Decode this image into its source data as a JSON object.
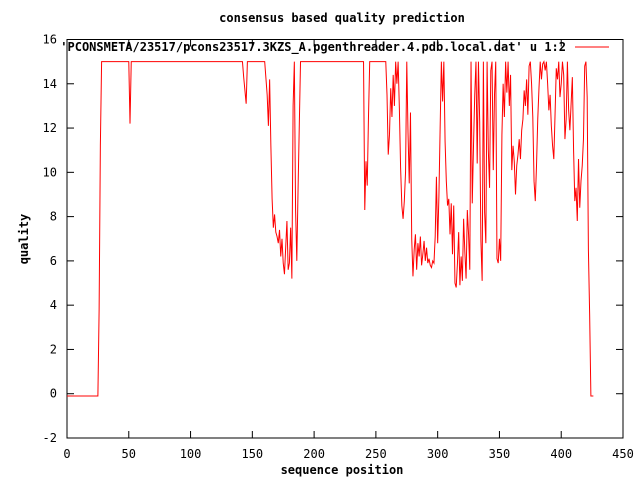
{
  "chart_data": {
    "type": "line",
    "title": "consensus based quality prediction",
    "xlabel": "sequence position",
    "ylabel": "quality",
    "xlim": [
      0,
      450
    ],
    "ylim": [
      -2,
      16
    ],
    "xticks": [
      0,
      50,
      100,
      150,
      200,
      250,
      300,
      350,
      400,
      450
    ],
    "yticks": [
      -2,
      0,
      2,
      4,
      6,
      8,
      10,
      12,
      14,
      16
    ],
    "grid": false,
    "legend_position": "top-right",
    "series": [
      {
        "name": "'PCONSMETA/23517/pcons23517.3KZS_A.pgenthreader.4.pdb.local.dat' u 1:2",
        "color": "#ff0000",
        "points": [
          [
            0,
            -0.1
          ],
          [
            25,
            -0.1
          ],
          [
            26,
            3.8
          ],
          [
            27,
            11.2
          ],
          [
            28,
            15
          ],
          [
            50,
            15
          ],
          [
            51,
            12.2
          ],
          [
            52,
            15
          ],
          [
            142,
            15
          ],
          [
            143,
            14.3
          ],
          [
            145,
            13.1
          ],
          [
            146,
            15
          ],
          [
            160,
            15
          ],
          [
            162,
            13.5
          ],
          [
            163,
            12.1
          ],
          [
            164,
            14.2
          ],
          [
            165,
            11.2
          ],
          [
            166,
            8.8
          ],
          [
            167,
            7.5
          ],
          [
            168,
            8.1
          ],
          [
            169,
            7.3
          ],
          [
            170,
            7.1
          ],
          [
            171,
            6.8
          ],
          [
            172,
            7.4
          ],
          [
            173,
            6.2
          ],
          [
            174,
            7.0
          ],
          [
            175,
            5.9
          ],
          [
            176,
            5.4
          ],
          [
            177,
            6.6
          ],
          [
            178,
            7.8
          ],
          [
            179,
            5.6
          ],
          [
            180,
            5.9
          ],
          [
            181,
            7.5
          ],
          [
            182,
            5.2
          ],
          [
            183,
            13.0
          ],
          [
            184,
            15
          ],
          [
            185,
            8.3
          ],
          [
            186,
            6.0
          ],
          [
            187,
            9.2
          ],
          [
            188,
            12.1
          ],
          [
            189,
            15
          ],
          [
            240,
            15
          ],
          [
            241,
            8.3
          ],
          [
            242,
            10.5
          ],
          [
            243,
            9.4
          ],
          [
            244,
            12.5
          ],
          [
            245,
            15
          ],
          [
            258,
            15
          ],
          [
            259,
            13.5
          ],
          [
            260,
            10.8
          ],
          [
            261,
            11.7
          ],
          [
            262,
            13.8
          ],
          [
            263,
            12.5
          ],
          [
            264,
            14.4
          ],
          [
            265,
            13.0
          ],
          [
            266,
            15
          ],
          [
            267,
            14.0
          ],
          [
            268,
            15
          ],
          [
            269,
            12.9
          ],
          [
            270,
            10.2
          ],
          [
            271,
            8.5
          ],
          [
            272,
            7.9
          ],
          [
            273,
            8.7
          ],
          [
            274,
            10.0
          ],
          [
            275,
            15
          ],
          [
            276,
            11.8
          ],
          [
            277,
            9.5
          ],
          [
            278,
            12.7
          ],
          [
            279,
            7.0
          ],
          [
            280,
            5.3
          ],
          [
            281,
            6.5
          ],
          [
            282,
            7.2
          ],
          [
            283,
            5.6
          ],
          [
            284,
            6.8
          ],
          [
            285,
            6.2
          ],
          [
            286,
            7.1
          ],
          [
            287,
            5.8
          ],
          [
            288,
            6.3
          ],
          [
            289,
            6.9
          ],
          [
            290,
            6.0
          ],
          [
            291,
            6.6
          ],
          [
            292,
            5.9
          ],
          [
            293,
            6.1
          ],
          [
            294,
            5.8
          ],
          [
            295,
            5.7
          ],
          [
            296,
            6.0
          ],
          [
            297,
            5.9
          ],
          [
            298,
            7.1
          ],
          [
            299,
            9.8
          ],
          [
            300,
            6.8
          ],
          [
            301,
            8.9
          ],
          [
            302,
            12.0
          ],
          [
            303,
            15
          ],
          [
            304,
            13.2
          ],
          [
            305,
            15
          ],
          [
            306,
            11.4
          ],
          [
            307,
            9.6
          ],
          [
            308,
            8.5
          ],
          [
            309,
            8.8
          ],
          [
            310,
            7.2
          ],
          [
            311,
            8.6
          ],
          [
            312,
            6.3
          ],
          [
            313,
            8.5
          ],
          [
            314,
            5.0
          ],
          [
            315,
            4.8
          ],
          [
            316,
            5.9
          ],
          [
            317,
            7.3
          ],
          [
            318,
            4.9
          ],
          [
            319,
            6.2
          ],
          [
            320,
            5.1
          ],
          [
            321,
            7.9
          ],
          [
            322,
            6.4
          ],
          [
            323,
            5.2
          ],
          [
            324,
            8.3
          ],
          [
            325,
            7.2
          ],
          [
            326,
            5.6
          ],
          [
            327,
            15
          ],
          [
            328,
            8.6
          ],
          [
            329,
            11.2
          ],
          [
            330,
            13.5
          ],
          [
            331,
            15
          ],
          [
            332,
            10.4
          ],
          [
            333,
            15
          ],
          [
            334,
            12.3
          ],
          [
            335,
            6.9
          ],
          [
            336,
            5.1
          ],
          [
            337,
            15
          ],
          [
            338,
            8.2
          ],
          [
            339,
            6.8
          ],
          [
            340,
            15
          ],
          [
            341,
            11.0
          ],
          [
            342,
            9.3
          ],
          [
            343,
            14.6
          ],
          [
            344,
            15
          ],
          [
            345,
            10.1
          ],
          [
            346,
            13.5
          ],
          [
            347,
            15
          ],
          [
            348,
            6.1
          ],
          [
            349,
            5.9
          ],
          [
            350,
            7.0
          ],
          [
            351,
            6.0
          ],
          [
            352,
            11.7
          ],
          [
            353,
            14.0
          ],
          [
            354,
            12.5
          ],
          [
            355,
            15
          ],
          [
            356,
            13.6
          ],
          [
            357,
            15
          ],
          [
            358,
            13.0
          ],
          [
            359,
            14.4
          ],
          [
            360,
            10.1
          ],
          [
            361,
            11.2
          ],
          [
            362,
            10.5
          ],
          [
            363,
            9.0
          ],
          [
            364,
            10.3
          ],
          [
            365,
            10.8
          ],
          [
            366,
            11.5
          ],
          [
            367,
            10.6
          ],
          [
            368,
            11.9
          ],
          [
            369,
            12.4
          ],
          [
            370,
            13.7
          ],
          [
            371,
            13.0
          ],
          [
            372,
            14.2
          ],
          [
            373,
            12.6
          ],
          [
            374,
            14.8
          ],
          [
            375,
            15
          ],
          [
            376,
            14.0
          ],
          [
            377,
            12.5
          ],
          [
            378,
            9.6
          ],
          [
            379,
            8.7
          ],
          [
            380,
            10.3
          ],
          [
            381,
            12.4
          ],
          [
            382,
            13.8
          ],
          [
            383,
            15
          ],
          [
            384,
            14.2
          ],
          [
            385,
            14.9
          ],
          [
            386,
            15
          ],
          [
            387,
            14.6
          ],
          [
            388,
            15
          ],
          [
            389,
            14.0
          ],
          [
            390,
            12.8
          ],
          [
            391,
            13.5
          ],
          [
            392,
            12.1
          ],
          [
            393,
            11.2
          ],
          [
            394,
            10.6
          ],
          [
            395,
            12.6
          ],
          [
            396,
            14.7
          ],
          [
            397,
            14.2
          ],
          [
            398,
            15
          ],
          [
            399,
            13.4
          ],
          [
            400,
            14.0
          ],
          [
            401,
            15
          ],
          [
            402,
            14.4
          ],
          [
            403,
            11.5
          ],
          [
            404,
            12.4
          ],
          [
            405,
            15
          ],
          [
            406,
            12.8
          ],
          [
            407,
            11.9
          ],
          [
            408,
            13.1
          ],
          [
            409,
            14.3
          ],
          [
            410,
            11.0
          ],
          [
            411,
            8.7
          ],
          [
            412,
            9.3
          ],
          [
            413,
            7.8
          ],
          [
            414,
            10.6
          ],
          [
            415,
            8.4
          ],
          [
            416,
            9.6
          ],
          [
            417,
            10.3
          ],
          [
            418,
            11.5
          ],
          [
            419,
            14.8
          ],
          [
            420,
            15
          ],
          [
            421,
            13.4
          ],
          [
            422,
            6.5
          ],
          [
            423,
            3.6
          ],
          [
            424,
            -0.1
          ],
          [
            426,
            -0.1
          ]
        ]
      }
    ]
  }
}
